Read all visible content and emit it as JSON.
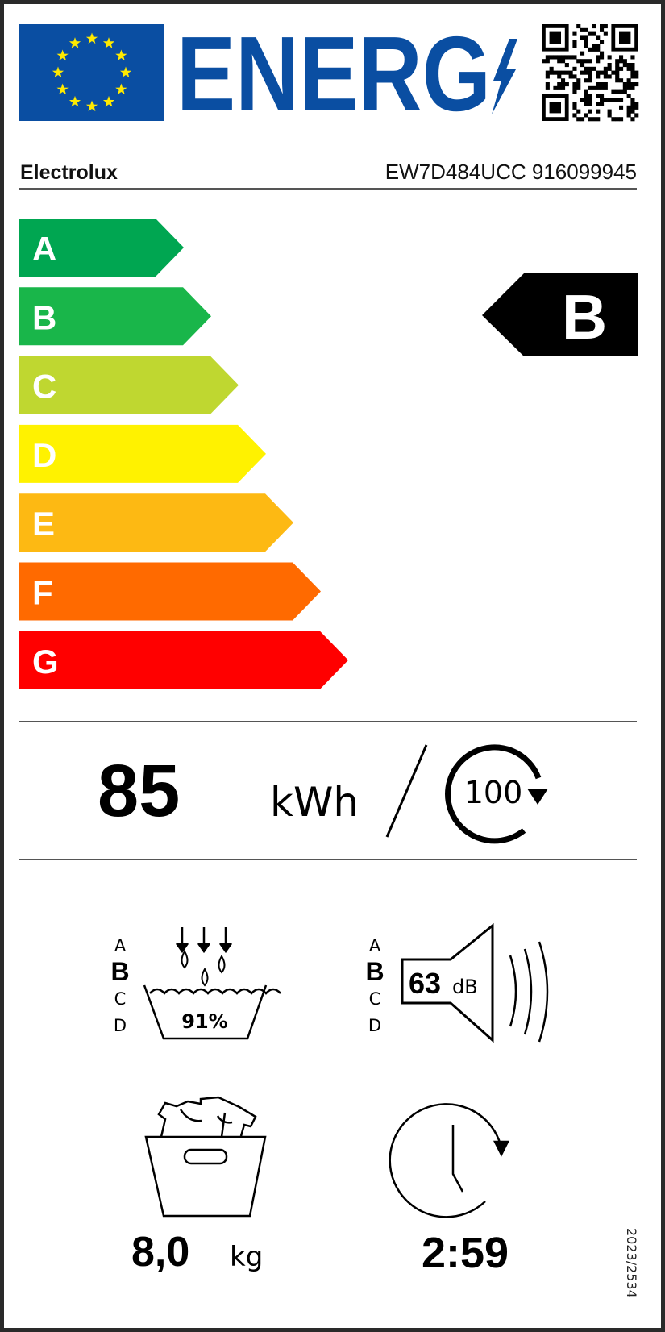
{
  "header": {
    "title": "ENERG",
    "brand": "Electrolux",
    "model": "EW7D484UCC 916099945"
  },
  "scale": {
    "classes": [
      "A",
      "B",
      "C",
      "D",
      "E",
      "F",
      "G"
    ],
    "colors": [
      "#00a651",
      "#19b64a",
      "#bfd730",
      "#fff200",
      "#fdb913",
      "#ff6a00",
      "#ff0000"
    ],
    "rating": "B"
  },
  "energy": {
    "value": "85",
    "unit": "kWh",
    "cycles": "100"
  },
  "water_extraction": {
    "classes": [
      "A",
      "B",
      "C",
      "D"
    ],
    "selected": "B",
    "value": "91%"
  },
  "noise": {
    "classes": [
      "A",
      "B",
      "C",
      "D"
    ],
    "selected": "B",
    "value": "63",
    "unit": "dB"
  },
  "capacity": {
    "value": "8,0",
    "unit": "kg"
  },
  "duration": {
    "value": "2:59"
  },
  "regulation": "2023/2534",
  "colors": {
    "eu_blue": "#0a4ea2",
    "eu_star": "#ffea00",
    "energ_blue": "#0a4ea2"
  }
}
